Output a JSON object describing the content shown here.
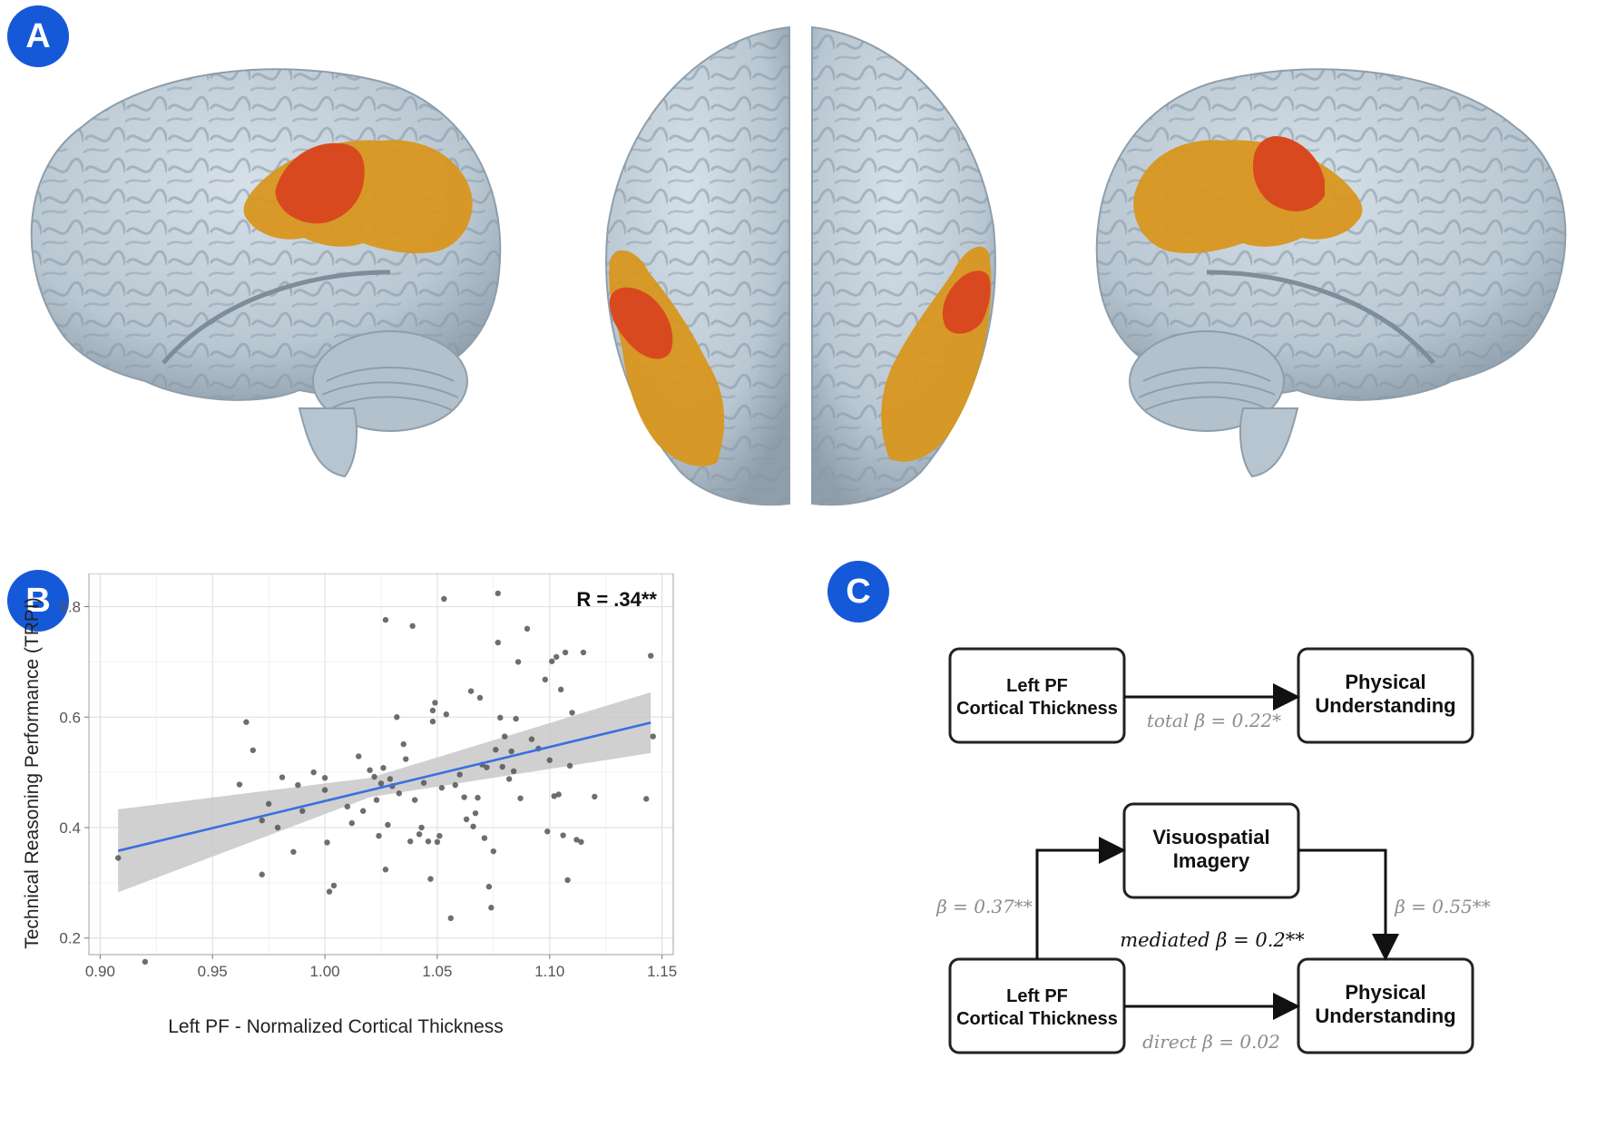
{
  "panels": {
    "a": "A",
    "b": "B",
    "c": "C"
  },
  "colors": {
    "badge": "#1559d8",
    "brain": "#b9c7d2",
    "brain_dark": "#8e9eab",
    "region_core": "#d9491f",
    "region_outer": "#d8961d",
    "fit_line": "#3a6fe0",
    "ci_band": "#c8c8c8",
    "point": "#555555",
    "coef_text": "#8c8c8c"
  },
  "chart_data": {
    "type": "scatter",
    "title": "",
    "xlabel": "Left PF - Normalized Cortical Thickness",
    "ylabel": "Technical Reasoning Performance (TRPI)",
    "xlim": [
      0.895,
      1.155
    ],
    "ylim": [
      0.17,
      0.86
    ],
    "xticks": [
      0.9,
      0.95,
      1.0,
      1.05,
      1.1,
      1.15
    ],
    "xtick_labels": [
      "0.90",
      "0.95",
      "1.00",
      "1.05",
      "1.10",
      "1.15"
    ],
    "yticks": [
      0.2,
      0.4,
      0.6,
      0.8
    ],
    "ytick_labels": [
      "0.2",
      "0.4",
      "0.6",
      "0.8"
    ],
    "grid": true,
    "annotation": "R = .34**",
    "fit": {
      "x": [
        0.908,
        1.145
      ],
      "y": [
        0.358,
        0.59
      ]
    },
    "ci_band": {
      "x": [
        0.908,
        1.02,
        1.145
      ],
      "lower": [
        0.283,
        0.455,
        0.535
      ],
      "upper": [
        0.433,
        0.49,
        0.645
      ]
    },
    "points": [
      [
        0.908,
        0.345
      ],
      [
        0.92,
        0.157
      ],
      [
        0.965,
        0.591
      ],
      [
        0.962,
        0.478
      ],
      [
        0.968,
        0.54
      ],
      [
        0.972,
        0.315
      ],
      [
        0.972,
        0.413
      ],
      [
        0.975,
        0.443
      ],
      [
        0.979,
        0.4
      ],
      [
        0.981,
        0.491
      ],
      [
        0.986,
        0.356
      ],
      [
        0.988,
        0.477
      ],
      [
        0.99,
        0.43
      ],
      [
        0.995,
        0.5
      ],
      [
        1.0,
        0.49
      ],
      [
        1.0,
        0.468
      ],
      [
        1.001,
        0.373
      ],
      [
        1.002,
        0.284
      ],
      [
        1.004,
        0.295
      ],
      [
        1.01,
        0.438
      ],
      [
        1.012,
        0.408
      ],
      [
        1.015,
        0.529
      ],
      [
        1.017,
        0.43
      ],
      [
        1.02,
        0.504
      ],
      [
        1.022,
        0.492
      ],
      [
        1.023,
        0.45
      ],
      [
        1.024,
        0.385
      ],
      [
        1.025,
        0.48
      ],
      [
        1.026,
        0.508
      ],
      [
        1.027,
        0.776
      ],
      [
        1.027,
        0.324
      ],
      [
        1.028,
        0.405
      ],
      [
        1.029,
        0.488
      ],
      [
        1.03,
        0.475
      ],
      [
        1.032,
        0.6
      ],
      [
        1.033,
        0.462
      ],
      [
        1.035,
        0.551
      ],
      [
        1.036,
        0.524
      ],
      [
        1.038,
        0.375
      ],
      [
        1.039,
        0.765
      ],
      [
        1.04,
        0.45
      ],
      [
        1.042,
        0.388
      ],
      [
        1.043,
        0.4
      ],
      [
        1.044,
        0.481
      ],
      [
        1.046,
        0.375
      ],
      [
        1.047,
        0.307
      ],
      [
        1.048,
        0.592
      ],
      [
        1.048,
        0.612
      ],
      [
        1.049,
        0.626
      ],
      [
        1.05,
        0.374
      ],
      [
        1.051,
        0.385
      ],
      [
        1.052,
        0.472
      ],
      [
        1.053,
        0.814
      ],
      [
        1.054,
        0.605
      ],
      [
        1.056,
        0.236
      ],
      [
        1.058,
        0.477
      ],
      [
        1.06,
        0.496
      ],
      [
        1.062,
        0.455
      ],
      [
        1.063,
        0.415
      ],
      [
        1.065,
        0.647
      ],
      [
        1.066,
        0.402
      ],
      [
        1.067,
        0.426
      ],
      [
        1.068,
        0.454
      ],
      [
        1.069,
        0.635
      ],
      [
        1.07,
        0.514
      ],
      [
        1.071,
        0.381
      ],
      [
        1.072,
        0.509
      ],
      [
        1.073,
        0.293
      ],
      [
        1.074,
        0.255
      ],
      [
        1.075,
        0.357
      ],
      [
        1.076,
        0.541
      ],
      [
        1.077,
        0.824
      ],
      [
        1.077,
        0.735
      ],
      [
        1.078,
        0.599
      ],
      [
        1.079,
        0.51
      ],
      [
        1.08,
        0.565
      ],
      [
        1.082,
        0.488
      ],
      [
        1.083,
        0.538
      ],
      [
        1.084,
        0.502
      ],
      [
        1.085,
        0.597
      ],
      [
        1.086,
        0.7
      ],
      [
        1.087,
        0.453
      ],
      [
        1.09,
        0.76
      ],
      [
        1.092,
        0.56
      ],
      [
        1.095,
        0.543
      ],
      [
        1.098,
        0.668
      ],
      [
        1.099,
        0.393
      ],
      [
        1.1,
        0.522
      ],
      [
        1.101,
        0.701
      ],
      [
        1.102,
        0.457
      ],
      [
        1.103,
        0.709
      ],
      [
        1.104,
        0.46
      ],
      [
        1.105,
        0.65
      ],
      [
        1.106,
        0.386
      ],
      [
        1.107,
        0.717
      ],
      [
        1.108,
        0.305
      ],
      [
        1.109,
        0.512
      ],
      [
        1.11,
        0.608
      ],
      [
        1.112,
        0.378
      ],
      [
        1.114,
        0.374
      ],
      [
        1.115,
        0.717
      ],
      [
        1.12,
        0.456
      ],
      [
        1.143,
        0.452
      ],
      [
        1.145,
        0.711
      ],
      [
        1.146,
        0.565
      ]
    ]
  },
  "diagram": {
    "box1": {
      "line1": "Left PF",
      "line2": "Cortical Thickness"
    },
    "box2": {
      "line1": "Physical",
      "line2": "Understanding"
    },
    "box3": {
      "line1": "Visuospatial",
      "line2": "Imagery"
    },
    "box4": {
      "line1": "Left PF",
      "line2": "Cortical Thickness"
    },
    "box5": {
      "line1": "Physical",
      "line2": "Understanding"
    },
    "total_label": "total β = 0.22*",
    "a_label": "β = 0.37**",
    "b_label": "β = 0.55**",
    "mediated_label": "mediated β = 0.2**",
    "direct_label": "direct β = 0.02"
  }
}
